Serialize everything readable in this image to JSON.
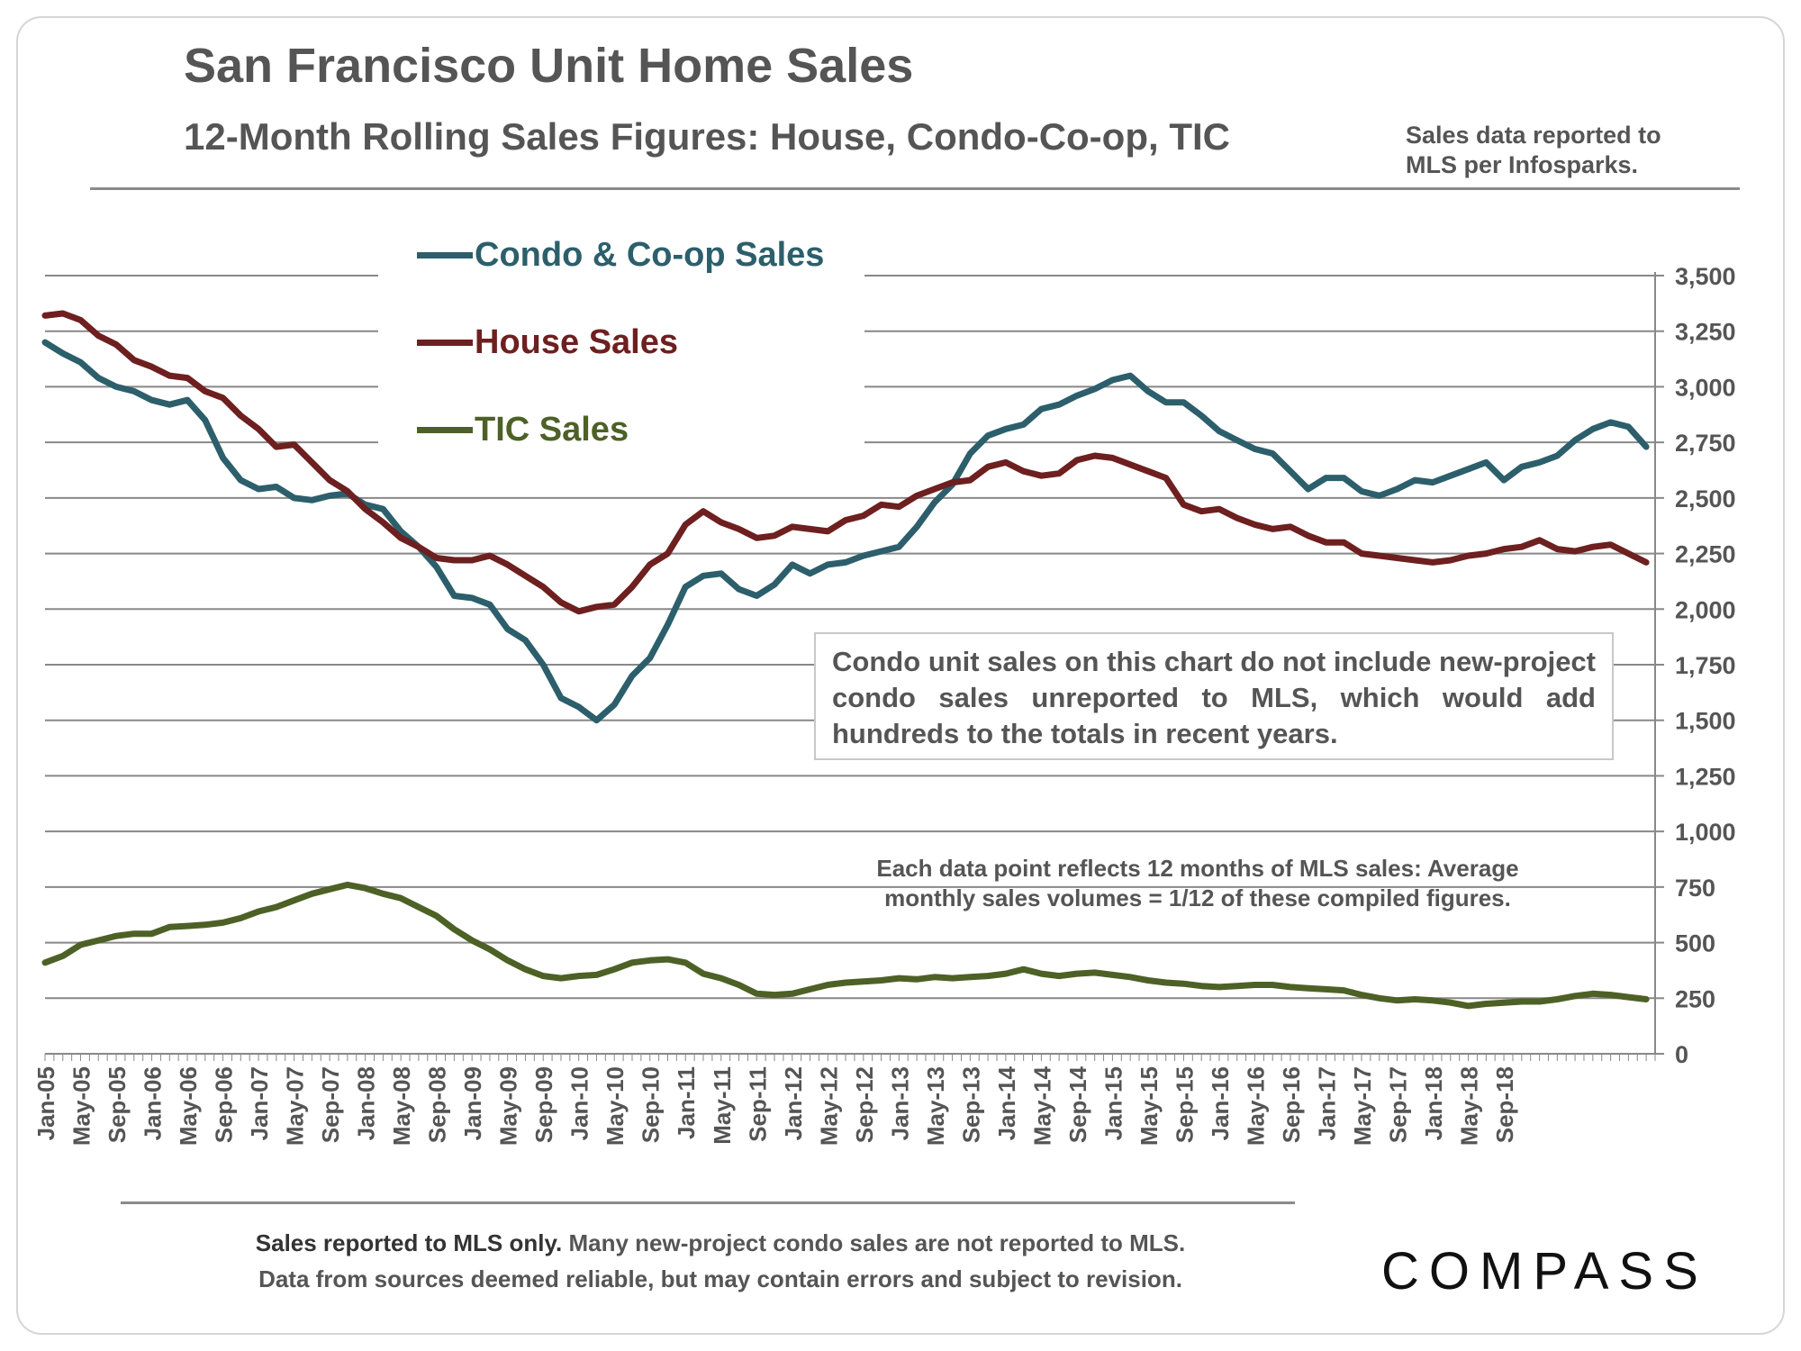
{
  "header": {
    "title": "San Francisco Unit Home Sales",
    "subtitle": "12-Month Rolling Sales Figures: House, Condo-Co-op, TIC",
    "source_note": "Sales data reported to MLS per Infosparks."
  },
  "legend": {
    "condo": "Condo & Co-op Sales",
    "house": "House Sales",
    "tic": "TIC Sales"
  },
  "callout": "Condo unit sales on this chart do not include new-project condo sales unreported to MLS, which would add hundreds to the totals in recent years.",
  "data_note": {
    "line1": "Each data point reflects 12 months of MLS sales:  Average",
    "line2": "monthly sales volumes = 1/12 of these compiled figures."
  },
  "footer": {
    "line1_bold": "Sales reported to MLS only.",
    "line1_rest": " Many new-project condo sales are not reported to MLS.",
    "line2": "Data from sources deemed reliable, but may contain errors and subject to revision."
  },
  "brand": "COMPASS",
  "colors": {
    "condo": "#2c5f6b",
    "house": "#6e1f1f",
    "tic": "#4d6126",
    "grid": "#888888",
    "text": "#555555"
  },
  "chart_data": {
    "type": "line",
    "title": "San Francisco Unit Home Sales",
    "xlabel": "",
    "ylabel": "",
    "ylim": [
      0,
      3500
    ],
    "y_ticks": [
      "0",
      "250",
      "500",
      "750",
      "1,000",
      "1,250",
      "1,500",
      "1,750",
      "2,000",
      "2,250",
      "2,500",
      "2,750",
      "3,000",
      "3,250",
      "3,500"
    ],
    "y_tick_values": [
      0,
      250,
      500,
      750,
      1000,
      1250,
      1500,
      1750,
      2000,
      2250,
      2500,
      2750,
      3000,
      3250,
      3500
    ],
    "x_ticks": [
      "Jan-05",
      "May-05",
      "Sep-05",
      "Jan-06",
      "May-06",
      "Sep-06",
      "Jan-07",
      "May-07",
      "Sep-07",
      "Jan-08",
      "May-08",
      "Sep-08",
      "Jan-09",
      "May-09",
      "Sep-09",
      "Jan-10",
      "May-10",
      "Sep-10",
      "Jan-11",
      "May-11",
      "Sep-11",
      "Jan-12",
      "May-12",
      "Sep-12",
      "Jan-13",
      "May-13",
      "Sep-13",
      "Jan-14",
      "May-14",
      "Sep-14",
      "Jan-15",
      "May-15",
      "Sep-15",
      "Jan-16",
      "May-16",
      "Sep-16",
      "Jan-17",
      "May-17",
      "Sep-17",
      "Jan-18",
      "May-18",
      "Sep-18"
    ],
    "x_start": "Jan-05",
    "x_interval_months": 1,
    "x_last_index": 167,
    "grid": true,
    "series": [
      {
        "name": "Condo & Co-op Sales",
        "key": "condo",
        "values": [
          [
            0,
            3200
          ],
          [
            2,
            3150
          ],
          [
            4,
            3110
          ],
          [
            6,
            3040
          ],
          [
            8,
            3000
          ],
          [
            10,
            2980
          ],
          [
            12,
            2940
          ],
          [
            14,
            2920
          ],
          [
            16,
            2940
          ],
          [
            18,
            2850
          ],
          [
            20,
            2680
          ],
          [
            22,
            2580
          ],
          [
            24,
            2540
          ],
          [
            26,
            2550
          ],
          [
            28,
            2500
          ],
          [
            30,
            2490
          ],
          [
            32,
            2510
          ],
          [
            34,
            2520
          ],
          [
            36,
            2470
          ],
          [
            38,
            2450
          ],
          [
            40,
            2350
          ],
          [
            42,
            2280
          ],
          [
            44,
            2190
          ],
          [
            46,
            2060
          ],
          [
            48,
            2050
          ],
          [
            50,
            2020
          ],
          [
            52,
            1910
          ],
          [
            54,
            1860
          ],
          [
            56,
            1750
          ],
          [
            58,
            1600
          ],
          [
            60,
            1560
          ],
          [
            62,
            1500
          ],
          [
            64,
            1570
          ],
          [
            66,
            1700
          ],
          [
            68,
            1780
          ],
          [
            70,
            1930
          ],
          [
            72,
            2100
          ],
          [
            74,
            2150
          ],
          [
            76,
            2160
          ],
          [
            78,
            2090
          ],
          [
            80,
            2060
          ],
          [
            82,
            2110
          ],
          [
            84,
            2200
          ],
          [
            86,
            2160
          ],
          [
            88,
            2200
          ],
          [
            90,
            2210
          ],
          [
            92,
            2240
          ],
          [
            94,
            2260
          ],
          [
            96,
            2280
          ],
          [
            98,
            2370
          ],
          [
            100,
            2480
          ],
          [
            102,
            2560
          ],
          [
            104,
            2700
          ],
          [
            106,
            2780
          ],
          [
            108,
            2810
          ],
          [
            110,
            2830
          ],
          [
            112,
            2900
          ],
          [
            114,
            2920
          ],
          [
            116,
            2960
          ],
          [
            118,
            2990
          ],
          [
            120,
            3030
          ],
          [
            122,
            3050
          ],
          [
            124,
            2980
          ],
          [
            126,
            2930
          ],
          [
            128,
            2930
          ],
          [
            130,
            2870
          ],
          [
            132,
            2800
          ],
          [
            134,
            2760
          ],
          [
            136,
            2720
          ],
          [
            138,
            2700
          ],
          [
            140,
            2620
          ],
          [
            142,
            2540
          ],
          [
            144,
            2590
          ],
          [
            146,
            2590
          ],
          [
            148,
            2530
          ],
          [
            150,
            2510
          ],
          [
            152,
            2540
          ],
          [
            154,
            2580
          ],
          [
            156,
            2570
          ],
          [
            158,
            2600
          ],
          [
            160,
            2630
          ],
          [
            162,
            2660
          ],
          [
            164,
            2580
          ],
          [
            166,
            2640
          ],
          [
            168,
            2660
          ],
          [
            170,
            2690
          ],
          [
            172,
            2760
          ],
          [
            174,
            2810
          ],
          [
            176,
            2840
          ],
          [
            178,
            2820
          ],
          [
            180,
            2730
          ]
        ]
      },
      {
        "name": "House Sales",
        "key": "house",
        "values": [
          [
            0,
            3320
          ],
          [
            2,
            3330
          ],
          [
            4,
            3300
          ],
          [
            6,
            3230
          ],
          [
            8,
            3190
          ],
          [
            10,
            3120
          ],
          [
            12,
            3090
          ],
          [
            14,
            3050
          ],
          [
            16,
            3040
          ],
          [
            18,
            2980
          ],
          [
            20,
            2950
          ],
          [
            22,
            2870
          ],
          [
            24,
            2810
          ],
          [
            26,
            2730
          ],
          [
            28,
            2740
          ],
          [
            30,
            2660
          ],
          [
            32,
            2580
          ],
          [
            34,
            2530
          ],
          [
            36,
            2450
          ],
          [
            38,
            2390
          ],
          [
            40,
            2320
          ],
          [
            42,
            2280
          ],
          [
            44,
            2230
          ],
          [
            46,
            2220
          ],
          [
            48,
            2220
          ],
          [
            50,
            2240
          ],
          [
            52,
            2200
          ],
          [
            54,
            2150
          ],
          [
            56,
            2100
          ],
          [
            58,
            2030
          ],
          [
            60,
            1990
          ],
          [
            62,
            2010
          ],
          [
            64,
            2020
          ],
          [
            66,
            2100
          ],
          [
            68,
            2200
          ],
          [
            70,
            2250
          ],
          [
            72,
            2380
          ],
          [
            74,
            2440
          ],
          [
            76,
            2390
          ],
          [
            78,
            2360
          ],
          [
            80,
            2320
          ],
          [
            82,
            2330
          ],
          [
            84,
            2370
          ],
          [
            86,
            2360
          ],
          [
            88,
            2350
          ],
          [
            90,
            2400
          ],
          [
            92,
            2420
          ],
          [
            94,
            2470
          ],
          [
            96,
            2460
          ],
          [
            98,
            2510
          ],
          [
            100,
            2540
          ],
          [
            102,
            2570
          ],
          [
            104,
            2580
          ],
          [
            106,
            2640
          ],
          [
            108,
            2660
          ],
          [
            110,
            2620
          ],
          [
            112,
            2600
          ],
          [
            114,
            2610
          ],
          [
            116,
            2670
          ],
          [
            118,
            2690
          ],
          [
            120,
            2680
          ],
          [
            122,
            2650
          ],
          [
            124,
            2620
          ],
          [
            126,
            2590
          ],
          [
            128,
            2470
          ],
          [
            130,
            2440
          ],
          [
            132,
            2450
          ],
          [
            134,
            2410
          ],
          [
            136,
            2380
          ],
          [
            138,
            2360
          ],
          [
            140,
            2370
          ],
          [
            142,
            2330
          ],
          [
            144,
            2300
          ],
          [
            146,
            2300
          ],
          [
            148,
            2250
          ],
          [
            150,
            2240
          ],
          [
            152,
            2230
          ],
          [
            154,
            2220
          ],
          [
            156,
            2210
          ],
          [
            158,
            2220
          ],
          [
            160,
            2240
          ],
          [
            162,
            2250
          ],
          [
            164,
            2270
          ],
          [
            166,
            2280
          ],
          [
            168,
            2310
          ],
          [
            170,
            2270
          ],
          [
            172,
            2260
          ],
          [
            174,
            2280
          ],
          [
            176,
            2290
          ],
          [
            178,
            2250
          ],
          [
            180,
            2210
          ]
        ]
      },
      {
        "name": "TIC Sales",
        "key": "tic",
        "values": [
          [
            0,
            410
          ],
          [
            2,
            440
          ],
          [
            4,
            490
          ],
          [
            6,
            510
          ],
          [
            8,
            530
          ],
          [
            10,
            540
          ],
          [
            12,
            540
          ],
          [
            14,
            570
          ],
          [
            16,
            575
          ],
          [
            18,
            580
          ],
          [
            20,
            590
          ],
          [
            22,
            610
          ],
          [
            24,
            640
          ],
          [
            26,
            660
          ],
          [
            28,
            690
          ],
          [
            30,
            720
          ],
          [
            32,
            740
          ],
          [
            34,
            760
          ],
          [
            36,
            745
          ],
          [
            38,
            720
          ],
          [
            40,
            700
          ],
          [
            42,
            660
          ],
          [
            44,
            620
          ],
          [
            46,
            560
          ],
          [
            48,
            510
          ],
          [
            50,
            470
          ],
          [
            52,
            420
          ],
          [
            54,
            380
          ],
          [
            56,
            350
          ],
          [
            58,
            340
          ],
          [
            60,
            350
          ],
          [
            62,
            355
          ],
          [
            64,
            380
          ],
          [
            66,
            410
          ],
          [
            68,
            420
          ],
          [
            70,
            425
          ],
          [
            72,
            410
          ],
          [
            74,
            360
          ],
          [
            76,
            340
          ],
          [
            78,
            310
          ],
          [
            80,
            270
          ],
          [
            82,
            265
          ],
          [
            84,
            270
          ],
          [
            86,
            290
          ],
          [
            88,
            310
          ],
          [
            90,
            320
          ],
          [
            92,
            325
          ],
          [
            94,
            330
          ],
          [
            96,
            340
          ],
          [
            98,
            335
          ],
          [
            100,
            345
          ],
          [
            102,
            340
          ],
          [
            104,
            345
          ],
          [
            106,
            350
          ],
          [
            108,
            360
          ],
          [
            110,
            380
          ],
          [
            112,
            360
          ],
          [
            114,
            350
          ],
          [
            116,
            360
          ],
          [
            118,
            365
          ],
          [
            120,
            355
          ],
          [
            122,
            345
          ],
          [
            124,
            330
          ],
          [
            126,
            320
          ],
          [
            128,
            315
          ],
          [
            130,
            305
          ],
          [
            132,
            300
          ],
          [
            134,
            305
          ],
          [
            136,
            310
          ],
          [
            138,
            310
          ],
          [
            140,
            300
          ],
          [
            142,
            295
          ],
          [
            144,
            290
          ],
          [
            146,
            285
          ],
          [
            148,
            265
          ],
          [
            150,
            250
          ],
          [
            152,
            240
          ],
          [
            154,
            245
          ],
          [
            156,
            240
          ],
          [
            158,
            230
          ],
          [
            160,
            215
          ],
          [
            162,
            225
          ],
          [
            164,
            230
          ],
          [
            166,
            235
          ],
          [
            168,
            235
          ],
          [
            170,
            245
          ],
          [
            172,
            260
          ],
          [
            174,
            270
          ],
          [
            176,
            265
          ],
          [
            178,
            255
          ],
          [
            180,
            245
          ]
        ]
      }
    ]
  }
}
